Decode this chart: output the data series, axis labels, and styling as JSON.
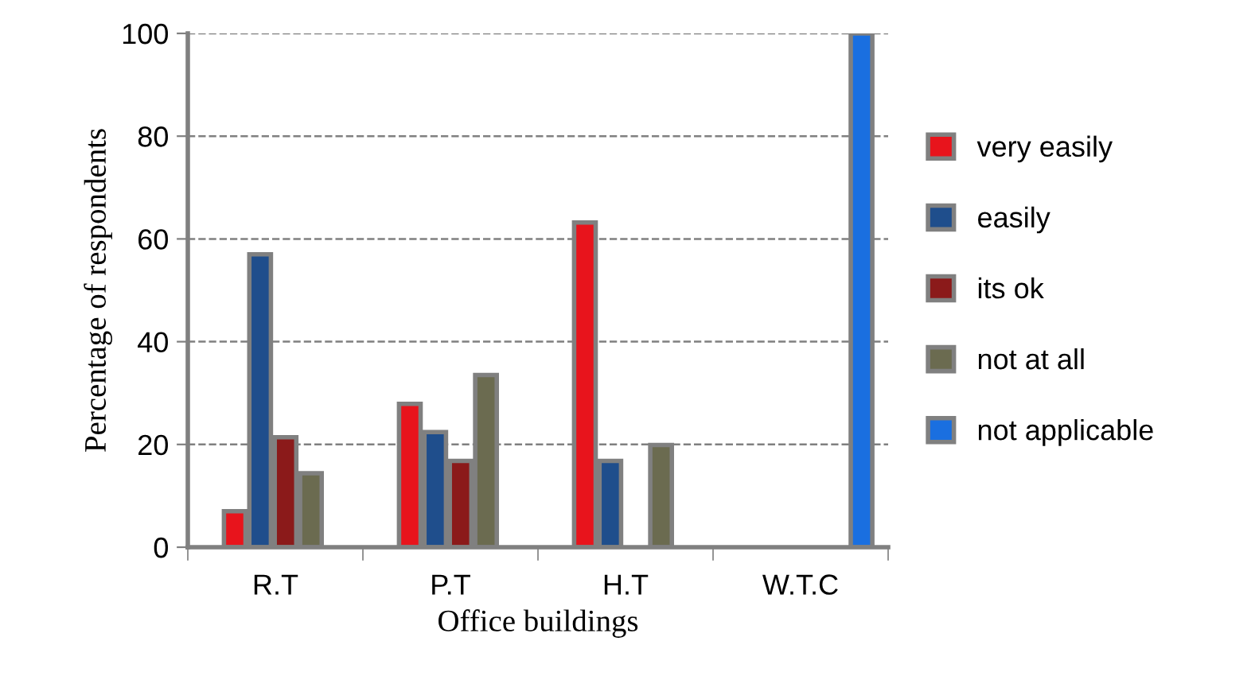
{
  "chart_data": {
    "type": "bar",
    "xlabel": "Office buildings",
    "ylabel": "Percentage of respondents",
    "categories": [
      "R.T",
      "P.T",
      "H.T",
      "W.T.C"
    ],
    "series": [
      {
        "name": "very easily",
        "color": "#e8141c",
        "values": [
          7,
          27.9,
          63.2,
          null
        ]
      },
      {
        "name": "easily",
        "color": "#1f4e8c",
        "values": [
          57,
          22.4,
          16.8,
          null
        ]
      },
      {
        "name": "its ok",
        "color": "#8b1a1a",
        "values": [
          21.4,
          16.8,
          null,
          null
        ]
      },
      {
        "name": "not at all",
        "color": "#6b6b50",
        "values": [
          14.4,
          33.5,
          19.9,
          null
        ]
      },
      {
        "name": "not applicable",
        "color": "#1a6fe0",
        "values": [
          null,
          null,
          null,
          100
        ]
      }
    ],
    "ylim": [
      0,
      100
    ],
    "yticks": [
      0,
      20,
      40,
      60,
      80,
      100
    ],
    "grid": "y",
    "legend": "right"
  }
}
